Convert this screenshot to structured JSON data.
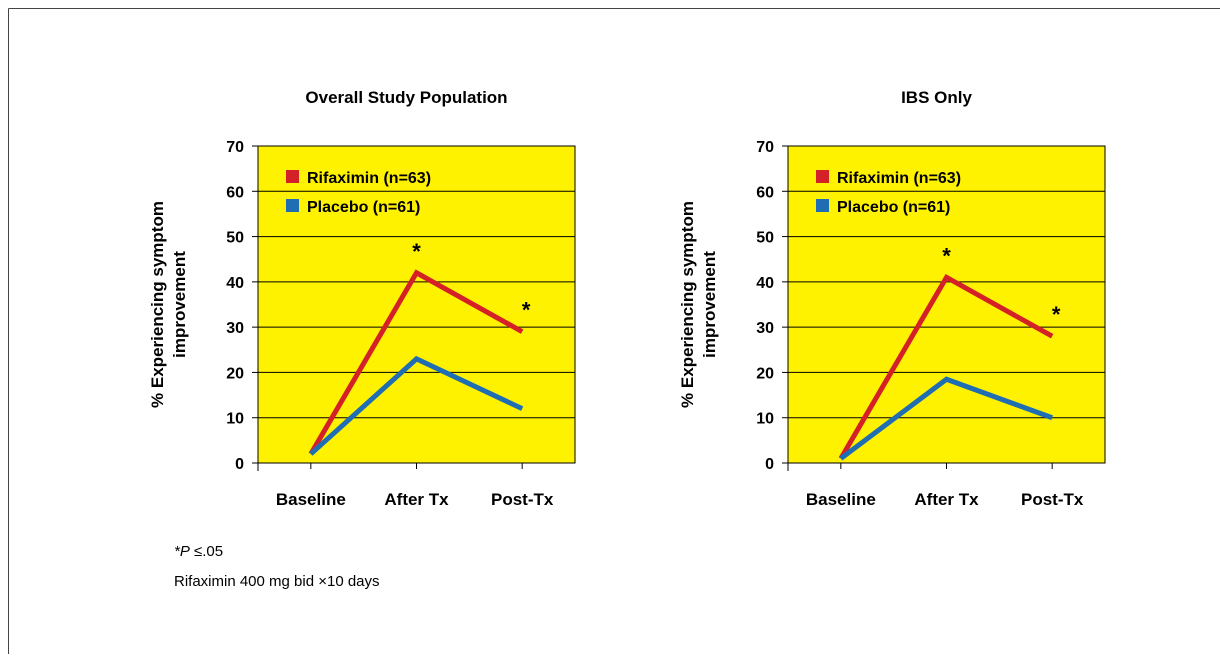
{
  "chart_data": [
    {
      "type": "line",
      "title": "Overall Study Population",
      "ylabel": [
        "% Experiencing symptom",
        "improvement"
      ],
      "categories": [
        "Baseline",
        "After Tx",
        "Post-Tx"
      ],
      "series": [
        {
          "name": "Rifaximin (n=63)",
          "color": "#d42027",
          "values": [
            2,
            42,
            29
          ]
        },
        {
          "name": "Placebo (n=61)",
          "color": "#1f6db3",
          "values": [
            2,
            23,
            12
          ]
        }
      ],
      "annotations": [
        {
          "category": "After Tx",
          "text": "*"
        },
        {
          "category": "Post-Tx",
          "text": "*"
        }
      ],
      "ylim": [
        0,
        70
      ],
      "yticks": [
        0,
        10,
        20,
        30,
        40,
        50,
        60,
        70
      ],
      "grid": true,
      "background": "#fff200",
      "legend": "upper-left"
    },
    {
      "type": "line",
      "title": "IBS Only",
      "ylabel": [
        "% Experiencing symptom",
        "improvement"
      ],
      "categories": [
        "Baseline",
        "After Tx",
        "Post-Tx"
      ],
      "series": [
        {
          "name": "Rifaximin (n=63)",
          "color": "#d42027",
          "values": [
            1,
            41,
            28
          ]
        },
        {
          "name": "Placebo (n=61)",
          "color": "#1f6db3",
          "values": [
            1,
            18.5,
            10
          ]
        }
      ],
      "annotations": [
        {
          "category": "After Tx",
          "text": "*"
        },
        {
          "category": "Post-Tx",
          "text": "*"
        }
      ],
      "ylim": [
        0,
        70
      ],
      "yticks": [
        0,
        10,
        20,
        30,
        40,
        50,
        60,
        70
      ],
      "grid": true,
      "background": "#fff200",
      "legend": "upper-left"
    }
  ],
  "footnotes": {
    "significance": {
      "italic": "*P",
      "text": "≤.05"
    },
    "dosing": "Rifaximin 400 mg bid ×10 days"
  }
}
